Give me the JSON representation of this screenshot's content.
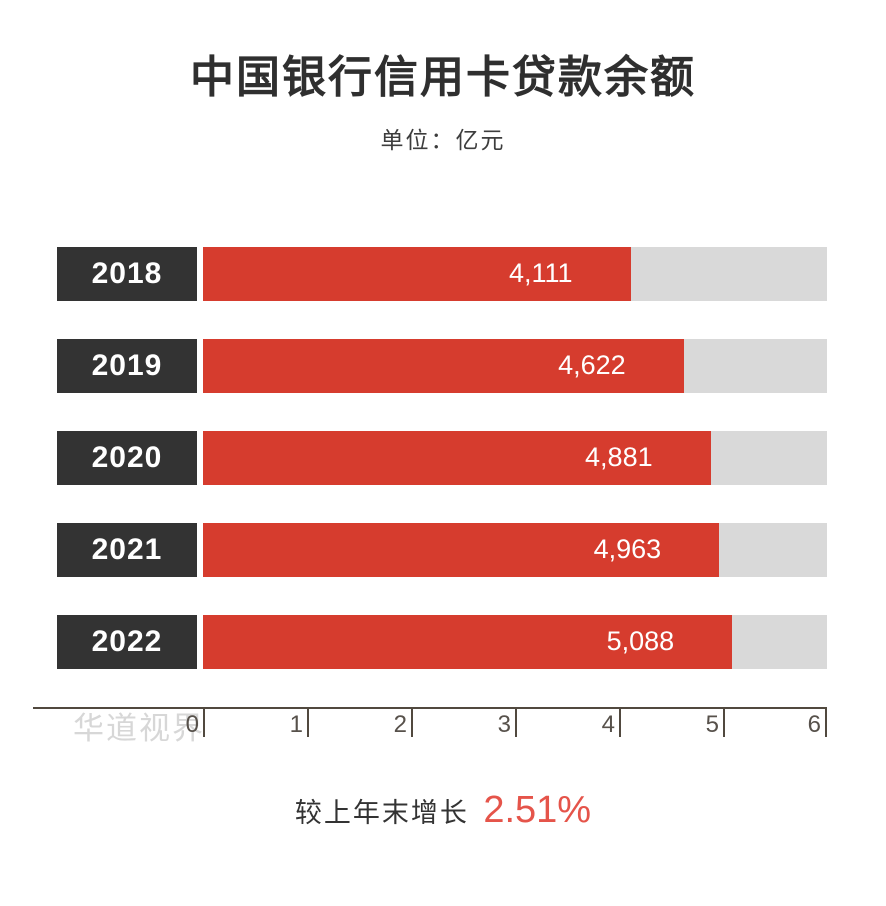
{
  "header": {
    "title": "中国银行信用卡贷款余额",
    "unit_label": "单位：亿元"
  },
  "watermark": "华道视界",
  "footer": {
    "growth_label": "较上年末增长",
    "growth_value": "2.51%"
  },
  "colors": {
    "bar_red": "#d63c2e",
    "track_gray": "#d9d9d9",
    "year_box_dark": "#333333",
    "accent_red": "#e5544a",
    "axis_text": "#57514b",
    "watermark_gray": "#d7d7d7"
  },
  "chart_data": {
    "type": "bar",
    "orientation": "horizontal",
    "title": "中国银行信用卡贷款余额",
    "unit": "亿元",
    "categories": [
      "2018",
      "2019",
      "2020",
      "2021",
      "2022"
    ],
    "values": [
      4111,
      4622,
      4881,
      4963,
      5088
    ],
    "values_formatted": [
      "4,111",
      "4,622",
      "4,881",
      "4,963",
      "5,088"
    ],
    "xlim": [
      0,
      6000
    ],
    "axis_ticks": [
      "0",
      "1",
      "2",
      "3",
      "4",
      "5",
      "6"
    ],
    "legend": "none",
    "grid": "off"
  }
}
